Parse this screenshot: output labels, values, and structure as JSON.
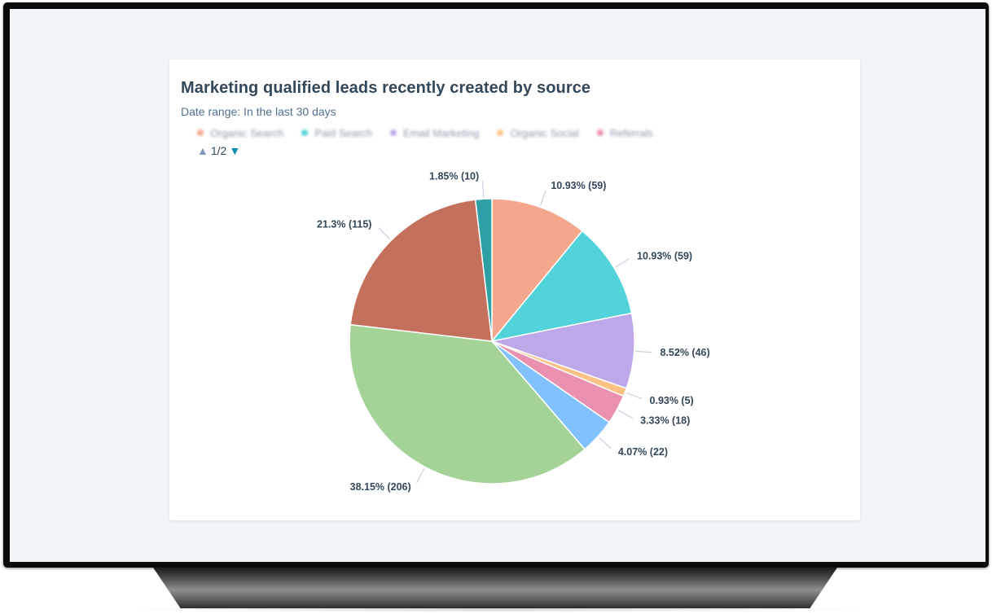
{
  "title": "Marketing qualified leads recently created by source",
  "subtitle": "Date range: In the last 30 days",
  "legend": {
    "items": [
      {
        "label": "Organic Search",
        "color": "#f5a78e"
      },
      {
        "label": "Paid Search",
        "color": "#51d3d9"
      },
      {
        "label": "Email Marketing",
        "color": "#bda9ea"
      },
      {
        "label": "Organic Social",
        "color": "#fcc285"
      },
      {
        "label": "Referrals",
        "color": "#ea90b1"
      }
    ],
    "page": "1/2"
  },
  "chart_data": {
    "type": "pie",
    "slices": [
      {
        "value": 59,
        "label": "10.93% (59)",
        "color": "#f5a78e"
      },
      {
        "value": 59,
        "label": "10.93% (59)",
        "color": "#51d3d9"
      },
      {
        "value": 46,
        "label": "8.52% (46)",
        "color": "#bda9ea"
      },
      {
        "value": 5,
        "label": "0.93% (5)",
        "color": "#fcc285"
      },
      {
        "value": 18,
        "label": "3.33% (18)",
        "color": "#ea90b1"
      },
      {
        "value": 22,
        "label": "4.07% (22)",
        "color": "#81c1fd"
      },
      {
        "value": 206,
        "label": "38.15% (206)",
        "color": "#a4d398"
      },
      {
        "value": 115,
        "label": "21.3% (115)",
        "color": "#c3705c"
      },
      {
        "value": 10,
        "label": "1.85% (10)",
        "color": "#2e9fa5"
      }
    ]
  }
}
